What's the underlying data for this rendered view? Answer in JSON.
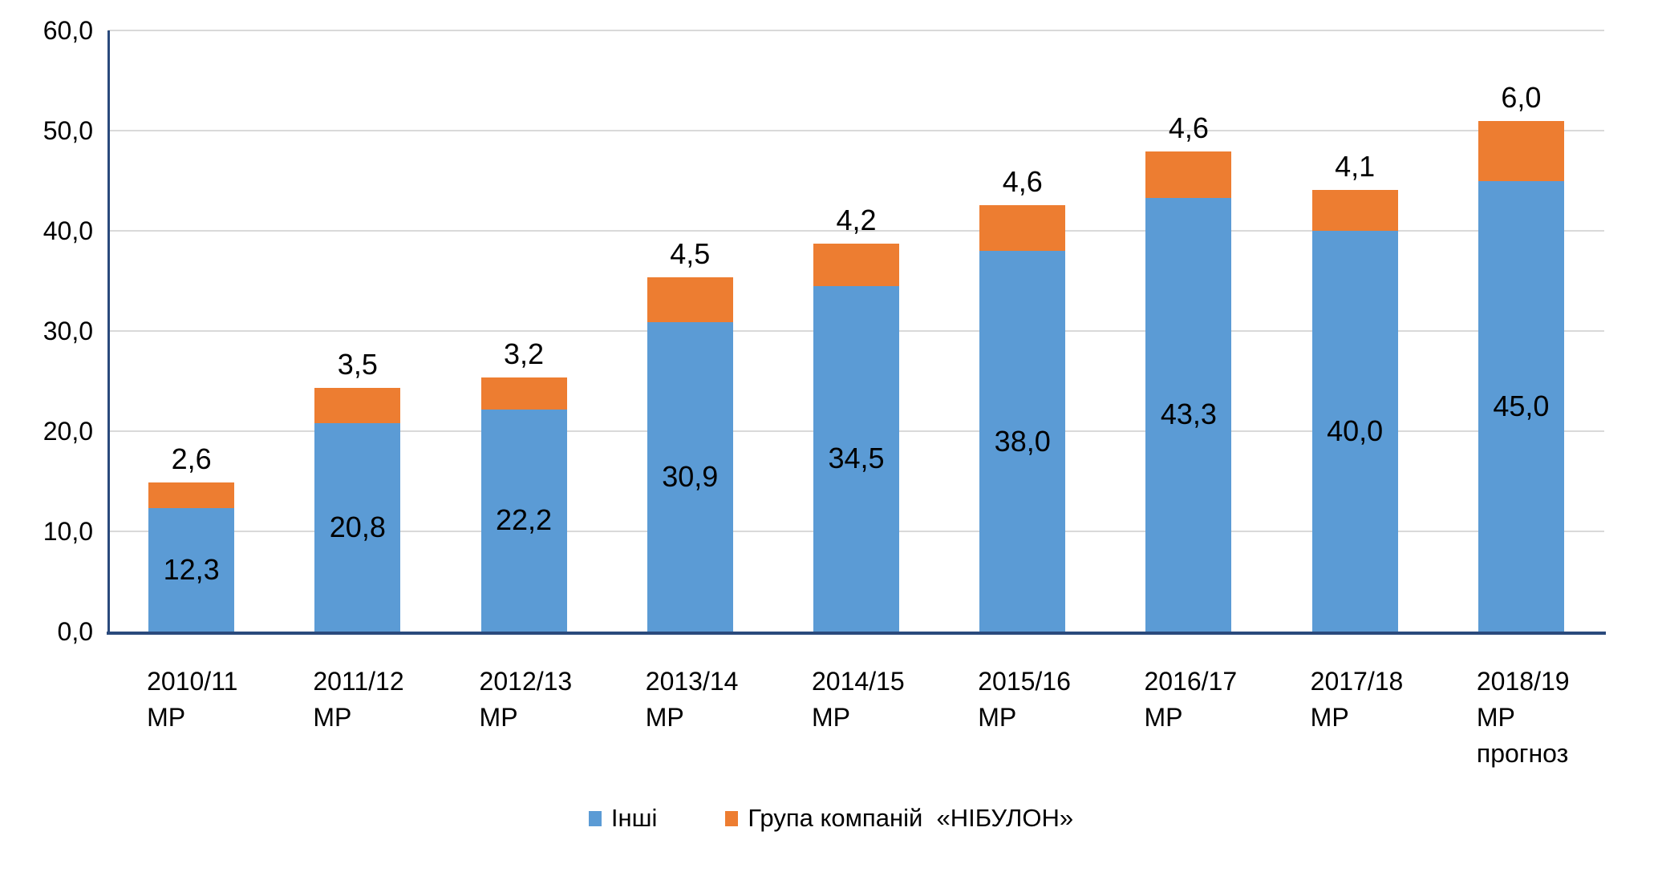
{
  "chart_data": {
    "type": "bar",
    "stacked": true,
    "title": "",
    "xlabel": "",
    "ylabel": "",
    "categories": [
      [
        "2010/11",
        "МР"
      ],
      [
        "2011/12",
        "МР"
      ],
      [
        "2012/13",
        "МР"
      ],
      [
        "2013/14",
        "МР"
      ],
      [
        "2014/15",
        "МР"
      ],
      [
        "2015/16",
        "МР"
      ],
      [
        "2016/17",
        "МР"
      ],
      [
        "2017/18",
        "МР"
      ],
      [
        "2018/19",
        "МР",
        "прогноз"
      ]
    ],
    "series": [
      {
        "name": "Інші",
        "color": "#5b9bd5",
        "values": [
          12.3,
          20.8,
          22.2,
          30.9,
          34.5,
          38.0,
          43.3,
          40.0,
          45.0
        ],
        "labels": [
          "12,3",
          "20,8",
          "22,2",
          "30,9",
          "34,5",
          "38,0",
          "43,3",
          "40,0",
          "45,0"
        ]
      },
      {
        "name": "Група компаній  «НІБУЛОН»",
        "color": "#ed7d31",
        "values": [
          2.6,
          3.5,
          3.2,
          4.5,
          4.2,
          4.6,
          4.6,
          4.1,
          6.0
        ],
        "labels": [
          "2,6",
          "3,5",
          "3,2",
          "4,5",
          "4,2",
          "4,6",
          "4,6",
          "4,1",
          "6,0"
        ]
      }
    ],
    "y_axis": {
      "min": 0,
      "max": 60,
      "step": 10,
      "ticks_top_to_bottom": [
        "60,0",
        "50,0",
        "40,0",
        "30,0",
        "20,0",
        "10,0",
        "0,0"
      ]
    },
    "grid": true,
    "legend_position": "bottom",
    "colors": {
      "axis": "#2a4a7c",
      "gridline": "#d9d9d9",
      "text": "#000000",
      "background": "#ffffff"
    }
  }
}
